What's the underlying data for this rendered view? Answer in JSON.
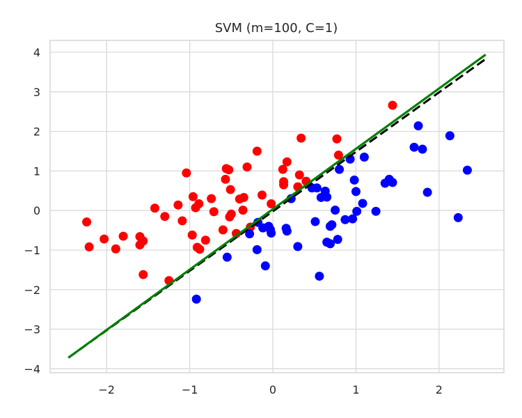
{
  "chart_data": {
    "type": "scatter",
    "title": "SVM (m=100, C=1)",
    "xlabel": "",
    "ylabel": "",
    "xlim": [
      -2.68,
      2.78
    ],
    "ylim": [
      -4.1,
      4.3
    ],
    "xticks": [
      -2,
      -1,
      0,
      1,
      2
    ],
    "yticks": [
      -4,
      -3,
      -2,
      -1,
      0,
      1,
      2,
      3,
      4
    ],
    "xtick_labels": [
      "−2",
      "−1",
      "0",
      "1",
      "2"
    ],
    "ytick_labels": [
      "−4",
      "−3",
      "−2",
      "−1",
      "0",
      "1",
      "2",
      "3",
      "4"
    ],
    "grid": true,
    "colors": {
      "class_red": "#ff0000",
      "class_blue": "#0000ff",
      "true_boundary": "#000000",
      "svm_boundary": "#008000",
      "grid": "#d9d9d9",
      "axes_edge": "#d9d9d9",
      "text": "#262626"
    },
    "series": [
      {
        "color": "red",
        "points": [
          [
            -2.24,
            -0.29
          ],
          [
            -2.21,
            -0.92
          ],
          [
            -2.03,
            -0.72
          ],
          [
            -1.89,
            -0.97
          ],
          [
            -1.8,
            -0.65
          ],
          [
            -1.6,
            -0.66
          ],
          [
            -1.6,
            -0.87
          ],
          [
            -1.56,
            -0.77
          ],
          [
            -1.56,
            -1.62
          ],
          [
            -1.42,
            0.06
          ],
          [
            -1.3,
            -0.15
          ],
          [
            -1.25,
            -1.77
          ],
          [
            -1.14,
            0.14
          ],
          [
            -1.09,
            -0.26
          ],
          [
            -1.04,
            0.95
          ],
          [
            -0.96,
            0.35
          ],
          [
            -0.97,
            -0.62
          ],
          [
            -0.93,
            0.07
          ],
          [
            -0.91,
            -0.93
          ],
          [
            -0.89,
            0.17
          ],
          [
            -0.88,
            -0.98
          ],
          [
            -0.81,
            -0.75
          ],
          [
            -0.74,
            0.3
          ],
          [
            -0.71,
            -0.03
          ],
          [
            -0.6,
            -0.49
          ],
          [
            -0.57,
            0.79
          ],
          [
            -0.56,
            1.06
          ],
          [
            -0.53,
            1.03
          ],
          [
            -0.52,
            -0.16
          ],
          [
            -0.51,
            0.53
          ],
          [
            -0.5,
            -0.09
          ],
          [
            -0.44,
            -0.58
          ],
          [
            -0.4,
            0.29
          ],
          [
            -0.36,
            0.01
          ],
          [
            -0.35,
            0.33
          ],
          [
            -0.31,
            1.1
          ],
          [
            -0.27,
            -0.42
          ],
          [
            -0.19,
            1.5
          ],
          [
            -0.13,
            0.39
          ],
          [
            -0.02,
            0.17
          ],
          [
            0.12,
            1.04
          ],
          [
            0.13,
            0.73
          ],
          [
            0.13,
            0.65
          ],
          [
            0.17,
            1.23
          ],
          [
            0.3,
            0.6
          ],
          [
            0.32,
            0.9
          ],
          [
            0.34,
            1.83
          ],
          [
            0.4,
            0.74
          ],
          [
            0.77,
            1.81
          ],
          [
            0.79,
            1.4
          ],
          [
            1.44,
            2.66
          ]
        ]
      },
      {
        "color": "blue",
        "points": [
          [
            -0.92,
            -2.24
          ],
          [
            -0.55,
            -1.18
          ],
          [
            -0.28,
            -0.59
          ],
          [
            -0.19,
            -0.99
          ],
          [
            -0.18,
            -0.3
          ],
          [
            -0.12,
            -0.44
          ],
          [
            -0.09,
            -1.4
          ],
          [
            -0.05,
            -0.4
          ],
          [
            -0.03,
            -0.48
          ],
          [
            -0.02,
            -0.57
          ],
          [
            0.16,
            -0.45
          ],
          [
            0.17,
            -0.52
          ],
          [
            0.22,
            0.3
          ],
          [
            0.3,
            -0.91
          ],
          [
            0.47,
            0.57
          ],
          [
            0.51,
            -0.28
          ],
          [
            0.53,
            0.57
          ],
          [
            0.56,
            -1.66
          ],
          [
            0.58,
            0.33
          ],
          [
            0.63,
            0.49
          ],
          [
            0.65,
            0.34
          ],
          [
            0.65,
            -0.8
          ],
          [
            0.69,
            -0.84
          ],
          [
            0.69,
            -0.4
          ],
          [
            0.71,
            -0.36
          ],
          [
            0.75,
            0.01
          ],
          [
            0.78,
            -0.73
          ],
          [
            0.8,
            1.04
          ],
          [
            0.87,
            -0.23
          ],
          [
            0.93,
            1.3
          ],
          [
            0.96,
            -0.21
          ],
          [
            0.98,
            0.77
          ],
          [
            1.0,
            0.48
          ],
          [
            1.01,
            -0.02
          ],
          [
            1.08,
            0.18
          ],
          [
            1.1,
            1.35
          ],
          [
            1.24,
            -0.02
          ],
          [
            1.35,
            0.69
          ],
          [
            1.4,
            0.79
          ],
          [
            1.44,
            0.71
          ],
          [
            1.7,
            1.6
          ],
          [
            1.75,
            2.14
          ],
          [
            1.8,
            1.55
          ],
          [
            1.86,
            0.46
          ],
          [
            2.13,
            1.89
          ],
          [
            2.23,
            -0.18
          ],
          [
            2.34,
            1.02
          ]
        ]
      }
    ],
    "lines": [
      {
        "role": "true_boundary",
        "style": "dashed",
        "color": "black",
        "x": [
          -2.46,
          2.56
        ],
        "y": [
          -3.72,
          3.83
        ]
      },
      {
        "role": "svm_boundary",
        "style": "solid",
        "color": "green",
        "x": [
          -2.46,
          2.56
        ],
        "y": [
          -3.72,
          3.94
        ]
      }
    ]
  }
}
